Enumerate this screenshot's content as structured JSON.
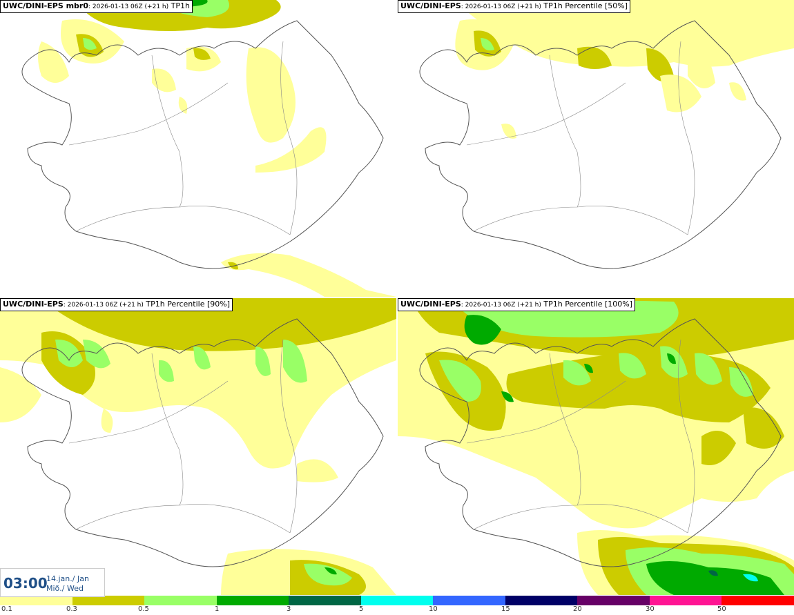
{
  "panels": [
    {
      "model": "UWC/DINI-EPS mbr0",
      "run": ": 2026-01-13 06Z (+21 h)",
      "field": " TP1h"
    },
    {
      "model": "UWC/DINI-EPS",
      "run": ": 2026-01-13 06Z (+21 h)",
      "field": " TP1h Percentile [50%]"
    },
    {
      "model": "UWC/DINI-EPS",
      "run": ": 2026-01-13 06Z (+21 h)",
      "field": " TP1h Percentile [90%]"
    },
    {
      "model": "UWC/DINI-EPS",
      "run": ": 2026-01-13 06Z (+21 h)",
      "field": " TP1h Percentile [100%]"
    }
  ],
  "valid_time": {
    "time": "03:00",
    "date_line1": "14.jan./ Jan",
    "date_line2": "Mið./ Wed"
  },
  "colorbar": {
    "colors": [
      "#ffff99",
      "#cccc00",
      "#99ff66",
      "#00aa00",
      "#006644",
      "#00ffee",
      "#3366ff",
      "#000066",
      "#660066",
      "#ff1493",
      "#ff0000"
    ],
    "labels": [
      "0.1",
      "0.3",
      "0.5",
      "1",
      "3",
      "5",
      "10",
      "15",
      "20",
      "30",
      "50"
    ]
  },
  "map_colors": {
    "outline": "#555555",
    "roads": "#888888"
  }
}
